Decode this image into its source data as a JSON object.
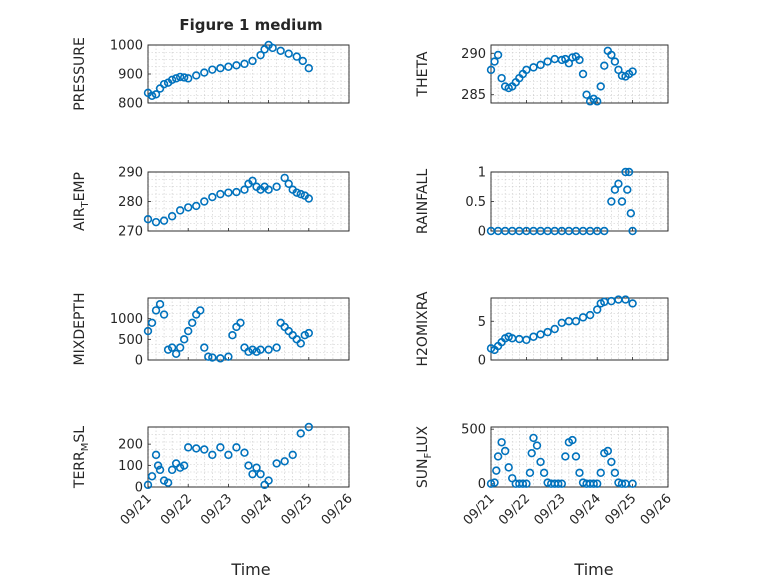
{
  "figure": {
    "title": "Figure 1 medium",
    "x_axis_label": "Time",
    "x_tick_labels": [
      "09/21",
      "09/22",
      "09/23",
      "09/24",
      "09/25",
      "09/26"
    ],
    "x_range": [
      21.0,
      26.0
    ],
    "marker": "circle",
    "colors": {
      "series": "#0072bd",
      "axes": "#262626",
      "grid": "#c8c8c8"
    },
    "grid": true
  },
  "chart_data": [
    {
      "type": "scatter",
      "ylabel": "PRESSURE",
      "ylim": [
        800,
        1000
      ],
      "yticks": [
        800,
        900,
        1000
      ],
      "ytick_labels": [
        "800",
        "900",
        "1000"
      ],
      "xlabel": "",
      "x": [
        21.0,
        21.1,
        21.2,
        21.3,
        21.4,
        21.5,
        21.6,
        21.7,
        21.8,
        21.9,
        22.0,
        22.2,
        22.4,
        22.6,
        22.8,
        23.0,
        23.2,
        23.4,
        23.6,
        23.8,
        23.9,
        24.0,
        24.1,
        24.3,
        24.5,
        24.7,
        24.85,
        25.0
      ],
      "y": [
        835,
        825,
        830,
        850,
        865,
        870,
        880,
        885,
        890,
        888,
        885,
        895,
        905,
        915,
        920,
        925,
        930,
        935,
        945,
        965,
        985,
        1000,
        990,
        980,
        970,
        960,
        945,
        920
      ]
    },
    {
      "type": "scatter",
      "ylabel": "THETA",
      "ylim": [
        284,
        291
      ],
      "yticks": [
        285,
        290
      ],
      "ytick_labels": [
        "285",
        "290"
      ],
      "x": [
        21.0,
        21.1,
        21.2,
        21.3,
        21.4,
        21.5,
        21.6,
        21.7,
        21.8,
        21.9,
        22.0,
        22.2,
        22.4,
        22.6,
        22.8,
        23.0,
        23.1,
        23.2,
        23.3,
        23.4,
        23.5,
        23.6,
        23.7,
        23.8,
        23.9,
        24.0,
        24.1,
        24.2,
        24.3,
        24.4,
        24.5,
        24.6,
        24.7,
        24.8,
        24.9,
        25.0
      ],
      "y": [
        288,
        289,
        289.8,
        287,
        286,
        285.8,
        286,
        286.5,
        287,
        287.5,
        288,
        288.3,
        288.6,
        289,
        289.3,
        289.2,
        289.3,
        288.8,
        289.5,
        289.6,
        289.2,
        287.5,
        285,
        284.2,
        284.5,
        284.2,
        286,
        288.5,
        290.3,
        289.8,
        289,
        288,
        287.3,
        287.2,
        287.5,
        287.8
      ]
    },
    {
      "type": "scatter",
      "ylabel": "AIR_TEMP",
      "ylim": [
        270,
        290
      ],
      "yticks": [
        270,
        280,
        290
      ],
      "ytick_labels": [
        "270",
        "280",
        "290"
      ],
      "x": [
        21.0,
        21.2,
        21.4,
        21.6,
        21.8,
        22.0,
        22.2,
        22.4,
        22.6,
        22.8,
        23.0,
        23.2,
        23.4,
        23.5,
        23.6,
        23.7,
        23.8,
        23.9,
        24.0,
        24.2,
        24.4,
        24.5,
        24.6,
        24.7,
        24.8,
        24.9,
        25.0
      ],
      "y": [
        274,
        273,
        273.5,
        275,
        277,
        278,
        278.5,
        280,
        281.5,
        282.5,
        283,
        283.2,
        284,
        286,
        287,
        285,
        284,
        285,
        284,
        285,
        288,
        286,
        284,
        283,
        282.5,
        282,
        281
      ]
    },
    {
      "type": "scatter",
      "ylabel": "RAINFALL",
      "ylim": [
        0,
        1
      ],
      "yticks": [
        0,
        0.5,
        1
      ],
      "ytick_labels": [
        "0",
        "0.5",
        "1"
      ],
      "x": [
        21.0,
        21.2,
        21.4,
        21.6,
        21.8,
        22.0,
        22.2,
        22.4,
        22.6,
        22.8,
        23.0,
        23.2,
        23.4,
        23.6,
        23.8,
        24.0,
        24.2,
        24.4,
        24.5,
        24.6,
        24.7,
        24.8,
        24.85,
        24.9,
        24.95,
        25.0
      ],
      "y": [
        0,
        0,
        0,
        0,
        0,
        0,
        0,
        0,
        0,
        0,
        0,
        0,
        0,
        0,
        0,
        0,
        0,
        0.5,
        0.7,
        0.8,
        0.5,
        1.0,
        0.7,
        1.0,
        0.3,
        0
      ]
    },
    {
      "type": "scatter",
      "ylabel": "MIXDEPTH",
      "ylim": [
        0,
        1500
      ],
      "yticks": [
        0,
        500,
        1000
      ],
      "ytick_labels": [
        "0",
        "500",
        "1000"
      ],
      "x": [
        21.0,
        21.1,
        21.2,
        21.3,
        21.4,
        21.5,
        21.6,
        21.7,
        21.8,
        21.9,
        22.0,
        22.1,
        22.2,
        22.3,
        22.4,
        22.5,
        22.6,
        22.8,
        23.0,
        23.1,
        23.2,
        23.3,
        23.4,
        23.5,
        23.6,
        23.7,
        23.8,
        24.0,
        24.2,
        24.3,
        24.4,
        24.5,
        24.6,
        24.7,
        24.8,
        24.9,
        25.0
      ],
      "y": [
        700,
        900,
        1200,
        1350,
        1100,
        250,
        300,
        150,
        300,
        500,
        700,
        900,
        1100,
        1200,
        300,
        80,
        60,
        40,
        80,
        600,
        800,
        900,
        300,
        200,
        250,
        200,
        250,
        250,
        300,
        900,
        800,
        700,
        600,
        500,
        400,
        600,
        650
      ]
    },
    {
      "type": "scatter",
      "ylabel": "H2OMIXRA",
      "ylim": [
        0,
        8
      ],
      "yticks": [
        0,
        5
      ],
      "ytick_labels": [
        "0",
        "5"
      ],
      "x": [
        21.0,
        21.1,
        21.2,
        21.3,
        21.4,
        21.5,
        21.6,
        21.8,
        22.0,
        22.2,
        22.4,
        22.6,
        22.8,
        23.0,
        23.2,
        23.4,
        23.6,
        23.8,
        24.0,
        24.1,
        24.2,
        24.4,
        24.6,
        24.8,
        25.0
      ],
      "y": [
        1.5,
        1.3,
        1.8,
        2.3,
        2.8,
        3.0,
        2.8,
        2.7,
        2.6,
        3.0,
        3.3,
        3.6,
        4.0,
        4.8,
        5.0,
        5.0,
        5.5,
        5.8,
        6.5,
        7.3,
        7.5,
        7.6,
        7.8,
        7.8,
        7.3
      ]
    },
    {
      "type": "scatter",
      "ylabel": "TERR_MSL",
      "ylim": [
        0,
        280
      ],
      "yticks": [
        0,
        100,
        200
      ],
      "ytick_labels": [
        "0",
        "100",
        "200"
      ],
      "x": [
        21.0,
        21.1,
        21.2,
        21.25,
        21.3,
        21.4,
        21.5,
        21.6,
        21.7,
        21.8,
        21.9,
        22.0,
        22.2,
        22.4,
        22.6,
        22.8,
        23.0,
        23.2,
        23.4,
        23.5,
        23.6,
        23.7,
        23.8,
        23.9,
        24.0,
        24.2,
        24.4,
        24.6,
        24.8,
        25.0
      ],
      "y": [
        10,
        50,
        150,
        100,
        80,
        30,
        20,
        80,
        110,
        90,
        100,
        185,
        180,
        175,
        150,
        185,
        150,
        185,
        160,
        100,
        60,
        90,
        60,
        10,
        30,
        110,
        120,
        150,
        250,
        280
      ]
    },
    {
      "type": "scatter",
      "ylabel": "SUN_FLUX",
      "ylim": [
        -30,
        520
      ],
      "yticks": [
        0,
        500
      ],
      "ytick_labels": [
        "0",
        "500"
      ],
      "x": [
        21.0,
        21.1,
        21.15,
        21.2,
        21.3,
        21.4,
        21.5,
        21.6,
        21.7,
        21.8,
        21.9,
        22.0,
        22.1,
        22.15,
        22.2,
        22.3,
        22.4,
        22.5,
        22.6,
        22.7,
        22.8,
        22.9,
        23.0,
        23.1,
        23.2,
        23.3,
        23.4,
        23.5,
        23.6,
        23.7,
        23.8,
        23.9,
        24.0,
        24.1,
        24.2,
        24.3,
        24.4,
        24.5,
        24.6,
        24.7,
        24.8,
        25.0
      ],
      "y": [
        0,
        10,
        120,
        250,
        380,
        300,
        150,
        50,
        0,
        0,
        0,
        0,
        100,
        280,
        420,
        350,
        200,
        100,
        10,
        0,
        0,
        0,
        0,
        250,
        380,
        400,
        250,
        100,
        10,
        0,
        0,
        0,
        0,
        100,
        280,
        300,
        200,
        100,
        10,
        0,
        0,
        0
      ]
    }
  ]
}
